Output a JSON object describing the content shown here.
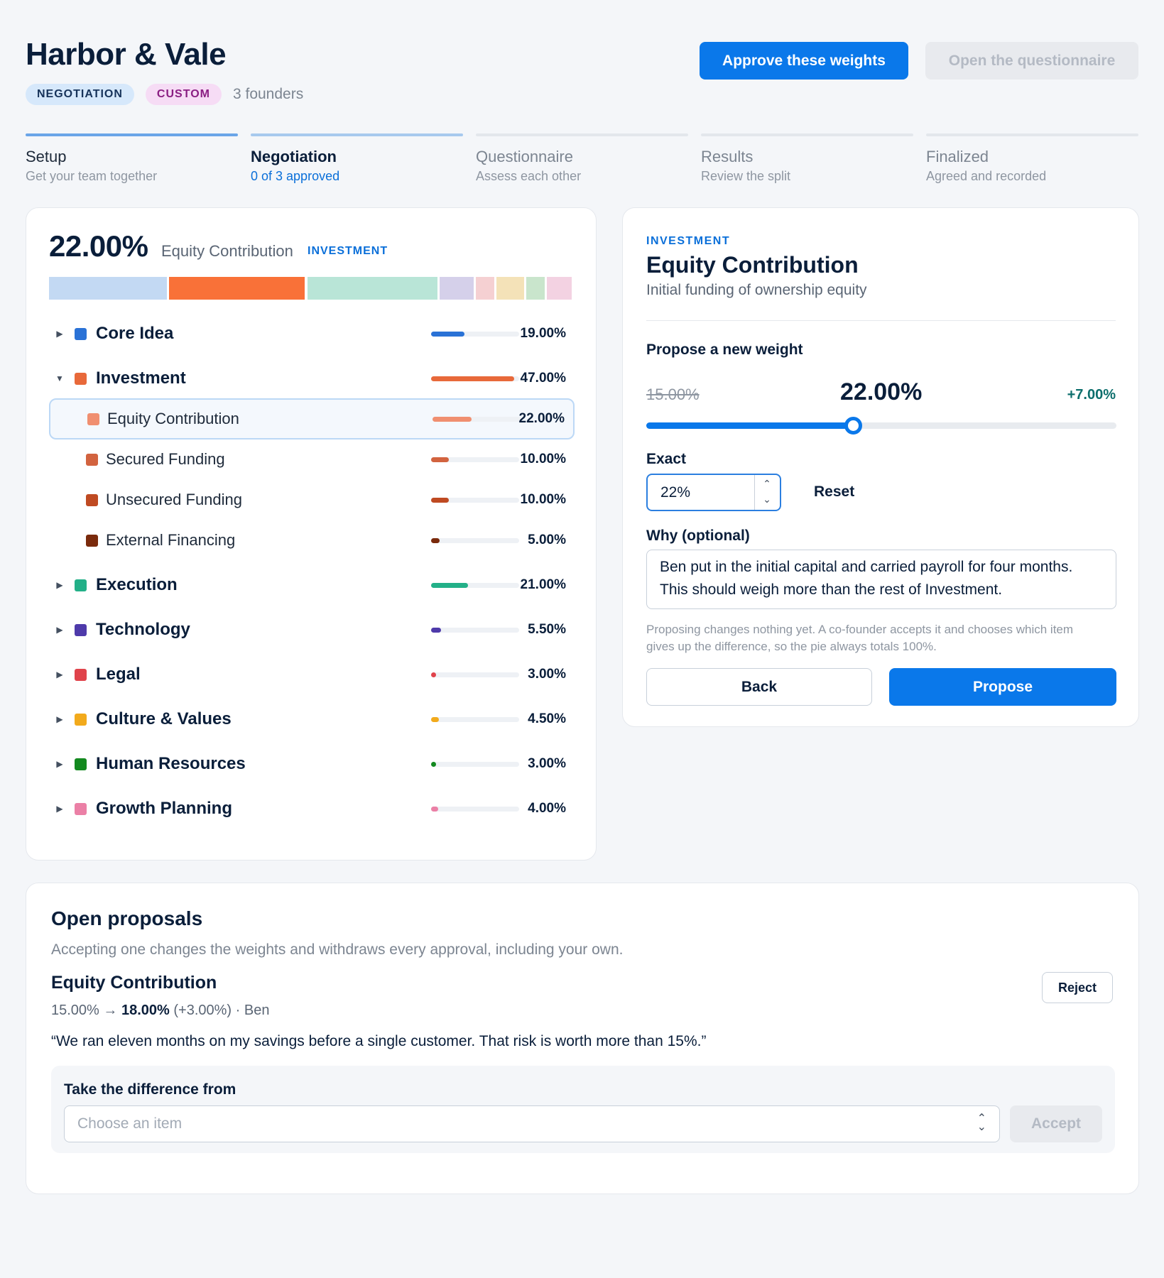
{
  "header": {
    "title": "Harbor & Vale",
    "tag_mode": "NEGOTIATION",
    "tag_type": "CUSTOM",
    "founders": "3 founders",
    "approve_button": "Approve these weights",
    "questionnaire_button": "Open the questionnaire"
  },
  "steps": [
    {
      "title": "Setup",
      "subtitle": "Get your team together",
      "state": "done"
    },
    {
      "title": "Negotiation",
      "subtitle": "0 of 3 approved",
      "state": "active"
    },
    {
      "title": "Questionnaire",
      "subtitle": "Assess each other",
      "state": "pending"
    },
    {
      "title": "Results",
      "subtitle": "Review the split",
      "state": "pending"
    },
    {
      "title": "Finalized",
      "subtitle": "Agreed and recorded",
      "state": "pending"
    }
  ],
  "overview": {
    "selected_percent": "22.00%",
    "selected_label": "Equity Contribution",
    "selected_category": "INVESTMENT"
  },
  "composition": [
    {
      "name": "Core Idea",
      "value": 19,
      "color": "#c3d9f3"
    },
    {
      "name": "Equity Contribution",
      "value": 22,
      "color": "#f97138"
    },
    {
      "name": "Execution",
      "value": 21,
      "color": "#b9e5d7"
    },
    {
      "name": "Technology",
      "value": 5.5,
      "color": "#d5d0ea"
    },
    {
      "name": "Legal",
      "value": 3,
      "color": "#f5d0d2"
    },
    {
      "name": "Culture & Values",
      "value": 4.5,
      "color": "#f4e2b8"
    },
    {
      "name": "Human Resources",
      "value": 3,
      "color": "#c9e5cc"
    },
    {
      "name": "Growth Planning",
      "value": 4,
      "color": "#f3d2e2"
    }
  ],
  "tree": [
    {
      "label": "Core Idea",
      "value": "19.00%",
      "fraction": 0.19,
      "color": "#2a72d6",
      "kind": "parent",
      "caret": "right"
    },
    {
      "label": "Investment",
      "value": "47.00%",
      "fraction": 0.47,
      "color": "#e8693a",
      "kind": "parent",
      "caret": "down"
    },
    {
      "label": "Equity Contribution",
      "value": "22.00%",
      "fraction": 0.22,
      "color": "#f08f70",
      "kind": "child",
      "selected": true
    },
    {
      "label": "Secured Funding",
      "value": "10.00%",
      "fraction": 0.1,
      "color": "#d2633f",
      "kind": "child"
    },
    {
      "label": "Unsecured Funding",
      "value": "10.00%",
      "fraction": 0.1,
      "color": "#bf4a22",
      "kind": "child"
    },
    {
      "label": "External Financing",
      "value": "5.00%",
      "fraction": 0.05,
      "color": "#7a2a0c",
      "kind": "child"
    },
    {
      "label": "Execution",
      "value": "21.00%",
      "fraction": 0.21,
      "color": "#23b088",
      "kind": "parent",
      "caret": "right"
    },
    {
      "label": "Technology",
      "value": "5.50%",
      "fraction": 0.055,
      "color": "#4e3aaa",
      "kind": "parent",
      "caret": "right"
    },
    {
      "label": "Legal",
      "value": "3.00%",
      "fraction": 0.03,
      "color": "#e0434b",
      "kind": "parent",
      "caret": "right"
    },
    {
      "label": "Culture & Values",
      "value": "4.50%",
      "fraction": 0.045,
      "color": "#f2aa1c",
      "kind": "parent",
      "caret": "right"
    },
    {
      "label": "Human Resources",
      "value": "3.00%",
      "fraction": 0.03,
      "color": "#13891f",
      "kind": "parent",
      "caret": "right"
    },
    {
      "label": "Growth Planning",
      "value": "4.00%",
      "fraction": 0.04,
      "color": "#eb80a6",
      "kind": "parent",
      "caret": "right"
    }
  ],
  "editor": {
    "category": "INVESTMENT",
    "title": "Equity Contribution",
    "description": "Initial funding of ownership equity",
    "propose_label": "Propose a new weight",
    "old_weight": "15.00%",
    "new_weight": "22.00%",
    "delta": "+7.00%",
    "slider_fraction": 0.44,
    "exact_label": "Exact",
    "exact_value": "22%",
    "reset_label": "Reset",
    "why_label": "Why (optional)",
    "why_text": "Ben put in the initial capital and carried payroll for four months. This should weigh more than the rest of Investment.",
    "note": "Proposing changes nothing yet. A co-founder accepts it and chooses which item gives up the difference, so the pie always totals 100%.",
    "back_label": "Back",
    "submit_label": "Propose"
  },
  "proposals": {
    "title": "Open proposals",
    "subtitle": "Accepting one changes the weights and withdraws every approval, including your own.",
    "item": {
      "title": "Equity Contribution",
      "from": "15.00%",
      "arrow": "→",
      "to": "18.00%",
      "delta": "(+3.00%)",
      "author": "· Ben",
      "quote": "“We ran eleven months on my savings before a single customer. That risk is worth more than 15%.”",
      "reject_label": "Reject",
      "take_label": "Take the difference from",
      "select_placeholder": "Choose an item",
      "accept_label": "Accept"
    }
  }
}
